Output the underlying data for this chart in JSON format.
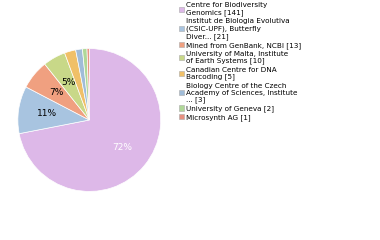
{
  "labels": [
    "Centre for Biodiversity\nGenomics [141]",
    "Institut de Biologia Evolutiva\n(CSIC-UPF), Butterfly\nDiver... [21]",
    "Mined from GenBank, NCBI [13]",
    "University of Malta, Institute\nof Earth Systems [10]",
    "Canadian Centre for DNA\nBarcoding [5]",
    "Biology Centre of the Czech\nAcademy of Sciences, Institute\n... [3]",
    "University of Geneva [2]",
    "Microsynth AG [1]"
  ],
  "values": [
    141,
    21,
    13,
    10,
    5,
    3,
    2,
    1
  ],
  "colors": [
    "#ddb8e8",
    "#a8c4e0",
    "#f0a080",
    "#c8d888",
    "#f0c068",
    "#a0bcd8",
    "#b0d898",
    "#e89080"
  ],
  "pct_thresholds": [
    5
  ],
  "background_color": "#ffffff",
  "legend_fontsize": 5.2,
  "pct_fontsize": 6.5
}
